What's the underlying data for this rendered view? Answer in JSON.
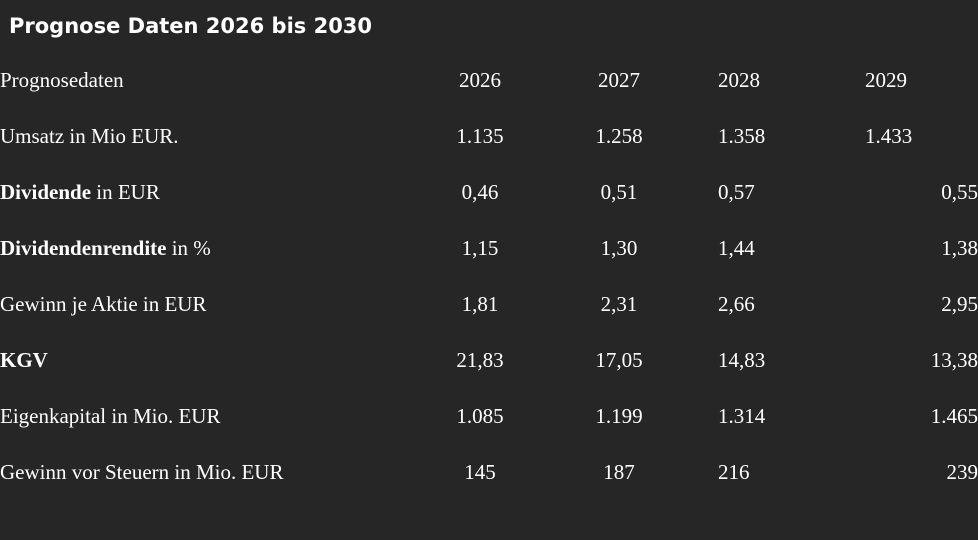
{
  "title": "Prognose Daten 2026 bis 2030",
  "table": {
    "header": {
      "label": "Prognosedaten",
      "years": [
        "2026",
        "2027",
        "2028",
        "2029"
      ]
    },
    "rows": [
      {
        "label_bold": "",
        "label_rest": "Umsatz in Mio EUR.",
        "values": [
          "1.135",
          "1.258",
          "1.358",
          "1.433"
        ]
      },
      {
        "label_bold": "Dividende",
        "label_rest": " in EUR",
        "values": [
          "0,46",
          "0,51",
          "0,57",
          "0,55"
        ]
      },
      {
        "label_bold": "Dividendenrendite",
        "label_rest": " in %",
        "values": [
          "1,15",
          "1,30",
          "1,44",
          "1,38"
        ]
      },
      {
        "label_bold": "",
        "label_rest": "Gewinn je Aktie in EUR",
        "values": [
          "1,81",
          "2,31",
          "2,66",
          "2,95"
        ]
      },
      {
        "label_bold": "KGV",
        "label_rest": "",
        "values": [
          "21,83",
          "17,05",
          "14,83",
          "13,38"
        ]
      },
      {
        "label_bold": "",
        "label_rest": "Eigenkapital in Mio. EUR",
        "values": [
          "1.085",
          "1.199",
          "1.314",
          "1.465"
        ]
      },
      {
        "label_bold": "",
        "label_rest": "Gewinn vor Steuern in Mio. EUR",
        "values": [
          "145",
          "187",
          "216",
          "239"
        ]
      }
    ]
  }
}
